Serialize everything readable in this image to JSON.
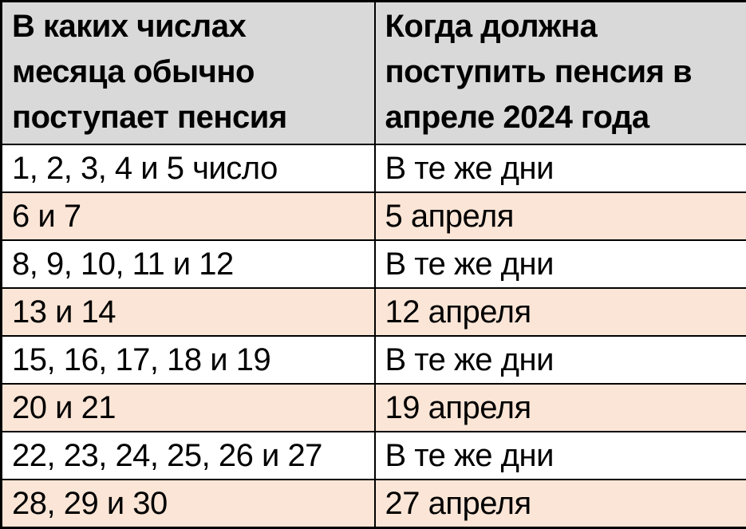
{
  "colors": {
    "header_bg": "#d9d9d9",
    "stripe_bg": "#fbe5d6",
    "row_bg": "#ffffff",
    "border": "#000000",
    "text": "#000000"
  },
  "table": {
    "headers": {
      "usual": "В каких числах месяца обычно поступает пенсия",
      "april": "Когда должна поступить пенсия в апреле 2024 года"
    },
    "rows": [
      {
        "usual": "1, 2, 3, 4 и 5 число",
        "april": "В те же дни"
      },
      {
        "usual": "6 и 7",
        "april": "5 апреля"
      },
      {
        "usual": "8, 9, 10, 11 и 12",
        "april": "В те же дни"
      },
      {
        "usual": "13 и 14",
        "april": "12 апреля"
      },
      {
        "usual": "15, 16, 17, 18 и 19",
        "april": "В те же дни"
      },
      {
        "usual": "20 и 21",
        "april": "19 апреля"
      },
      {
        "usual": "22, 23, 24, 25, 26 и 27",
        "april": "В те же дни"
      },
      {
        "usual": "28, 29 и 30",
        "april": "27 апреля"
      }
    ]
  }
}
